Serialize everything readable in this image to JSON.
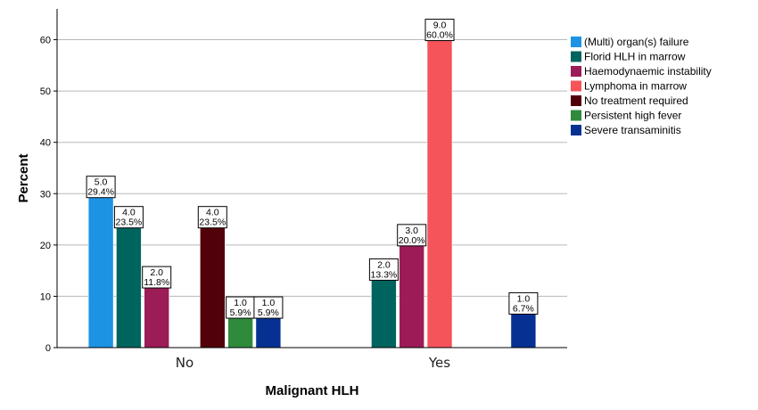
{
  "chart_data": {
    "type": "bar",
    "xlabel": "Malignant HLH",
    "ylabel": "Percent",
    "ylim": [
      0,
      66
    ],
    "yticks": [
      0,
      10,
      20,
      30,
      40,
      50,
      60
    ],
    "grid": true,
    "legend_position": "right",
    "categories": [
      "No",
      "Yes"
    ],
    "series": [
      {
        "name": "(Multi) organ(s) failure",
        "color": "#1c93e3",
        "values": [
          29.4,
          null
        ],
        "counts": [
          "5.0",
          null
        ],
        "labels": [
          "29.4%",
          null
        ]
      },
      {
        "name": "Florid HLH in marrow",
        "color": "#00645e",
        "values": [
          23.5,
          13.3
        ],
        "counts": [
          "4.0",
          "2.0"
        ],
        "labels": [
          "23.5%",
          "13.3%"
        ]
      },
      {
        "name": "Haemodynaemic instability",
        "color": "#9b1c56",
        "values": [
          11.8,
          20.0
        ],
        "counts": [
          "2.0",
          "3.0"
        ],
        "labels": [
          "11.8%",
          "20.0%"
        ]
      },
      {
        "name": "Lymphoma in marrow",
        "color": "#f4545a",
        "values": [
          null,
          60.0
        ],
        "counts": [
          null,
          "9.0"
        ],
        "labels": [
          null,
          "60.0%"
        ]
      },
      {
        "name": "No treatment required",
        "color": "#520009",
        "values": [
          23.5,
          null
        ],
        "counts": [
          "4.0",
          null
        ],
        "labels": [
          "23.5%",
          null
        ]
      },
      {
        "name": "Persistent high fever",
        "color": "#2f8a3c",
        "values": [
          5.9,
          null
        ],
        "counts": [
          "1.0",
          null
        ],
        "labels": [
          "5.9%",
          null
        ]
      },
      {
        "name": "Severe transaminitis",
        "color": "#063193",
        "values": [
          5.9,
          6.7
        ],
        "counts": [
          "1.0",
          "1.0"
        ],
        "labels": [
          "5.9%",
          "6.7%"
        ]
      }
    ]
  }
}
